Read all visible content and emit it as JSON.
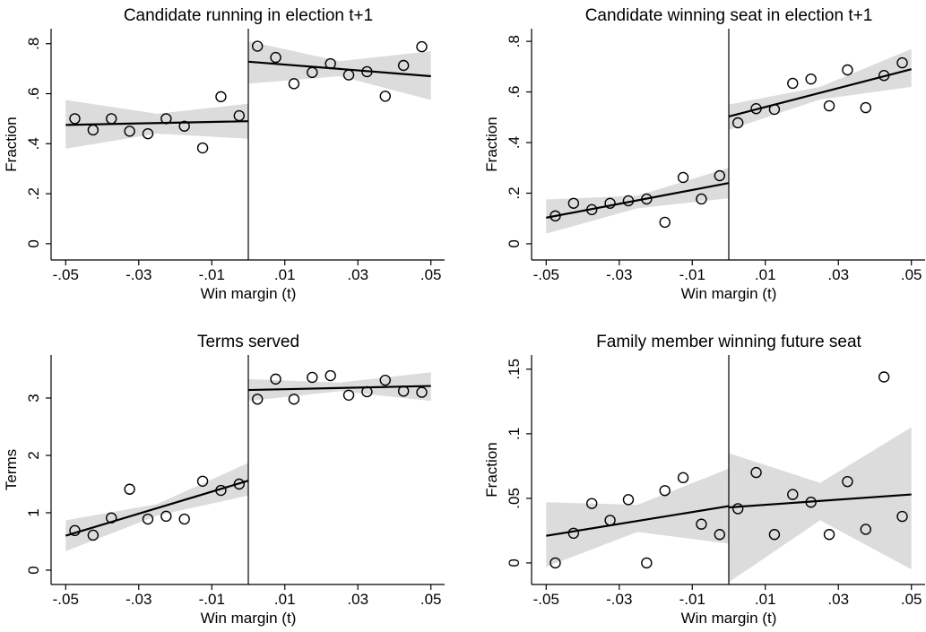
{
  "chart_data": [
    {
      "type": "scatter",
      "title": "Candidate running in election t+1",
      "x_label": "Win margin (t)",
      "y_label": "Fraction",
      "xlim": [
        -0.054,
        0.054
      ],
      "ylim": [
        -0.065,
        0.86
      ],
      "xticks": [
        {
          "value": -0.05,
          "label": "-.05"
        },
        {
          "value": -0.03,
          "label": "-.03"
        },
        {
          "value": -0.01,
          "label": "-.01"
        },
        {
          "value": 0.01,
          "label": ".01"
        },
        {
          "value": 0.03,
          "label": ".03"
        },
        {
          "value": 0.05,
          "label": ".05"
        }
      ],
      "yticks": [
        0,
        {
          "value": 0.2,
          "label": ".2"
        },
        {
          "value": 0.4,
          "label": ".4"
        },
        {
          "value": 0.6,
          "label": ".6"
        },
        {
          "value": 0.8,
          "label": ".8"
        }
      ],
      "cutoff": 0,
      "points": {
        "x": [
          -0.0475,
          -0.0425,
          -0.0375,
          -0.0325,
          -0.0275,
          -0.0225,
          -0.0175,
          -0.0125,
          -0.0075,
          -0.0025,
          0.0025,
          0.0075,
          0.0125,
          0.0175,
          0.0225,
          0.0275,
          0.0325,
          0.0375,
          0.0425,
          0.0475
        ],
        "values": [
          0.5,
          0.455,
          0.5,
          0.45,
          0.44,
          0.5,
          0.47,
          0.383,
          0.588,
          0.512,
          0.79,
          0.745,
          0.64,
          0.685,
          0.72,
          0.675,
          0.688,
          0.59,
          0.713,
          0.788
        ]
      },
      "fits": [
        {
          "x": [
            -0.05,
            0
          ],
          "values": [
            0.475,
            0.49
          ]
        },
        {
          "x": [
            0,
            0.05
          ],
          "values": [
            0.728,
            0.67
          ]
        }
      ],
      "bands": [
        {
          "x": [
            -0.05,
            -0.025,
            0
          ],
          "lower": [
            0.38,
            0.44,
            0.42
          ],
          "upper": [
            0.575,
            0.52,
            0.56
          ]
        },
        {
          "x": [
            0,
            0.025,
            0.05
          ],
          "lower": [
            0.64,
            0.67,
            0.575
          ],
          "upper": [
            0.81,
            0.73,
            0.77
          ]
        }
      ],
      "point_color": "#000000",
      "fit_color": "#000000",
      "band_color": "#dcdcdc"
    },
    {
      "type": "scatter",
      "title": "Candidate winning seat in election t+1",
      "x_label": "Win margin (t)",
      "y_label": "Fraction",
      "xlim": [
        -0.054,
        0.054
      ],
      "ylim": [
        -0.064,
        0.85
      ],
      "xticks": [
        {
          "value": -0.05,
          "label": "-.05"
        },
        {
          "value": -0.03,
          "label": "-.03"
        },
        {
          "value": -0.01,
          "label": "-.01"
        },
        {
          "value": 0.01,
          "label": ".01"
        },
        {
          "value": 0.03,
          "label": ".03"
        },
        {
          "value": 0.05,
          "label": ".05"
        }
      ],
      "yticks": [
        0,
        {
          "value": 0.2,
          "label": ".2"
        },
        {
          "value": 0.4,
          "label": ".4"
        },
        {
          "value": 0.6,
          "label": ".6"
        },
        {
          "value": 0.8,
          "label": ".8"
        }
      ],
      "cutoff": 0,
      "points": {
        "x": [
          -0.0475,
          -0.0425,
          -0.0375,
          -0.0325,
          -0.0275,
          -0.0225,
          -0.0175,
          -0.0125,
          -0.0075,
          -0.0025,
          0.0025,
          0.0075,
          0.0125,
          0.0175,
          0.0225,
          0.0275,
          0.0325,
          0.0375,
          0.0425,
          0.0475
        ],
        "values": [
          0.11,
          0.16,
          0.135,
          0.16,
          0.17,
          0.177,
          0.085,
          0.262,
          0.177,
          0.269,
          0.478,
          0.534,
          0.531,
          0.634,
          0.651,
          0.545,
          0.687,
          0.538,
          0.665,
          0.715
        ]
      },
      "fits": [
        {
          "x": [
            -0.05,
            0
          ],
          "values": [
            0.103,
            0.24
          ]
        },
        {
          "x": [
            0,
            0.05
          ],
          "values": [
            0.503,
            0.69
          ]
        }
      ],
      "bands": [
        {
          "x": [
            -0.05,
            -0.025,
            0
          ],
          "lower": [
            0.04,
            0.14,
            0.18
          ],
          "upper": [
            0.175,
            0.19,
            0.3
          ]
        },
        {
          "x": [
            0,
            0.025,
            0.05
          ],
          "lower": [
            0.45,
            0.57,
            0.62
          ],
          "upper": [
            0.55,
            0.62,
            0.77
          ]
        }
      ],
      "point_color": "#000000",
      "fit_color": "#000000",
      "band_color": "#dcdcdc"
    },
    {
      "type": "scatter",
      "title": "Terms served",
      "x_label": "Win margin (t)",
      "y_label": "Terms",
      "xlim": [
        -0.054,
        0.054
      ],
      "ylim": [
        -0.25,
        3.75
      ],
      "xticks": [
        {
          "value": -0.05,
          "label": "-.05"
        },
        {
          "value": -0.03,
          "label": "-.03"
        },
        {
          "value": -0.01,
          "label": "-.01"
        },
        {
          "value": 0.01,
          "label": ".01"
        },
        {
          "value": 0.03,
          "label": ".03"
        },
        {
          "value": 0.05,
          "label": ".05"
        }
      ],
      "yticks": [
        0,
        1,
        2,
        3
      ],
      "cutoff": 0,
      "points": {
        "x": [
          -0.0475,
          -0.0425,
          -0.0375,
          -0.0325,
          -0.0275,
          -0.0225,
          -0.0175,
          -0.0125,
          -0.0075,
          -0.0025,
          0.0025,
          0.0075,
          0.0125,
          0.0175,
          0.0225,
          0.0275,
          0.0325,
          0.0375,
          0.0425,
          0.0475
        ],
        "values": [
          0.69,
          0.61,
          0.91,
          1.41,
          0.89,
          0.94,
          0.89,
          1.55,
          1.39,
          1.5,
          2.98,
          3.33,
          2.98,
          3.36,
          3.39,
          3.05,
          3.11,
          3.31,
          3.12,
          3.1
        ]
      },
      "fits": [
        {
          "x": [
            -0.05,
            0
          ],
          "values": [
            0.6,
            1.56
          ]
        },
        {
          "x": [
            0,
            0.05
          ],
          "values": [
            3.14,
            3.21
          ]
        }
      ],
      "bands": [
        {
          "x": [
            -0.05,
            -0.025,
            0
          ],
          "lower": [
            0.33,
            0.95,
            1.3
          ],
          "upper": [
            0.87,
            1.15,
            1.87
          ]
        },
        {
          "x": [
            0,
            0.025,
            0.05
          ],
          "lower": [
            2.95,
            3.12,
            2.95
          ],
          "upper": [
            3.33,
            3.27,
            3.45
          ]
        }
      ],
      "point_color": "#000000",
      "fit_color": "#000000",
      "band_color": "#dcdcdc"
    },
    {
      "type": "scatter",
      "title": "Family member winning future seat",
      "x_label": "Win margin (t)",
      "y_label": "Fraction",
      "xlim": [
        -0.054,
        0.054
      ],
      "ylim": [
        -0.0167,
        0.161
      ],
      "xticks": [
        {
          "value": -0.05,
          "label": "-.05"
        },
        {
          "value": -0.03,
          "label": "-.03"
        },
        {
          "value": -0.01,
          "label": "-.01"
        },
        {
          "value": 0.01,
          "label": ".01"
        },
        {
          "value": 0.03,
          "label": ".03"
        },
        {
          "value": 0.05,
          "label": ".05"
        }
      ],
      "yticks": [
        0,
        {
          "value": 0.05,
          "label": ".05"
        },
        {
          "value": 0.1,
          "label": ".1"
        },
        {
          "value": 0.15,
          "label": ".15"
        }
      ],
      "cutoff": 0,
      "points": {
        "x": [
          -0.0475,
          -0.0425,
          -0.0375,
          -0.0325,
          -0.0275,
          -0.0225,
          -0.0175,
          -0.0125,
          -0.0075,
          -0.0025,
          0.0025,
          0.0075,
          0.0125,
          0.0175,
          0.0225,
          0.0275,
          0.0325,
          0.0375,
          0.0425,
          0.0475
        ],
        "values": [
          0,
          0.023,
          0.046,
          0.033,
          0.049,
          0,
          0.056,
          0.066,
          0.03,
          0.022,
          0.042,
          0.07,
          0.022,
          0.053,
          0.047,
          0.022,
          0.063,
          0.026,
          0.144,
          0.036
        ]
      },
      "fits": [
        {
          "x": [
            -0.05,
            0
          ],
          "values": [
            0.021,
            0.044
          ]
        },
        {
          "x": [
            0,
            0.05
          ],
          "values": [
            0.043,
            0.053
          ]
        }
      ],
      "bands": [
        {
          "x": [
            -0.05,
            -0.025,
            0
          ],
          "lower": [
            -0.003,
            0.024,
            0.015
          ],
          "upper": [
            0.047,
            0.045,
            0.073
          ]
        },
        {
          "x": [
            0,
            0.025,
            0.05
          ],
          "lower": [
            -0.015,
            0.033,
            -0.005
          ],
          "upper": [
            0.085,
            0.062,
            0.105
          ]
        }
      ],
      "point_color": "#000000",
      "fit_color": "#000000",
      "band_color": "#dcdcdc"
    }
  ]
}
